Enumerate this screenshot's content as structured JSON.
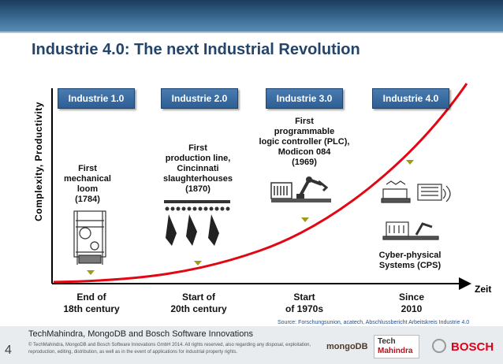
{
  "slide": {
    "title": "Industrie 4.0: The next Industrial Revolution",
    "y_axis_label": "Complexity, Productivity",
    "x_axis_label": "Zeit",
    "source": "Source: Forschungsunion, acatech, Abschlussbericht Arbeitskreis Industrie 4.0",
    "page_number": "4"
  },
  "stages": [
    {
      "label": "Industrie 1.0",
      "description": [
        "First",
        "mechanical",
        "loom",
        "(1784)"
      ],
      "era": [
        "End of",
        "18th century"
      ],
      "icon": "loom-icon"
    },
    {
      "label": "Industrie 2.0",
      "description": [
        "First",
        "production line,",
        "Cincinnati",
        "slaughterhouses",
        "(1870)"
      ],
      "era": [
        "Start of",
        "20th century"
      ],
      "icon": "production-line-icon"
    },
    {
      "label": "Industrie 3.0",
      "description": [
        "First",
        "programmable",
        "logic controller (PLC),",
        "Modicon 084",
        "(1969)"
      ],
      "era": [
        "Start",
        "of 1970s"
      ],
      "icon": "robot-arm-icon"
    },
    {
      "label": "Industrie 4.0",
      "description": [
        "Cyber-physical",
        "Systems (CPS)"
      ],
      "era": [
        "Since",
        "2010"
      ],
      "icon": "cyber-physical-icon"
    }
  ],
  "footer": {
    "title": "TechMahindra, MongoDB and Bosch Software Innovations",
    "copyright": "© TechMahindra, MongoDB and Bosch Software Innovations GmbH 2014. All rights reserved, also regarding any disposal, exploitation, reproduction, editing, distribution, as well as in the event of applications for industrial property rights.",
    "logos": {
      "mongodb": "mongoDB",
      "techmahindra_line1": "Tech",
      "techmahindra_line2": "Mahindra",
      "bosch": "BOSCH"
    }
  },
  "colors": {
    "curve": "#e30613",
    "stage_box": "#2d5e94",
    "title": "#24456b",
    "marker": "#a09a14"
  }
}
